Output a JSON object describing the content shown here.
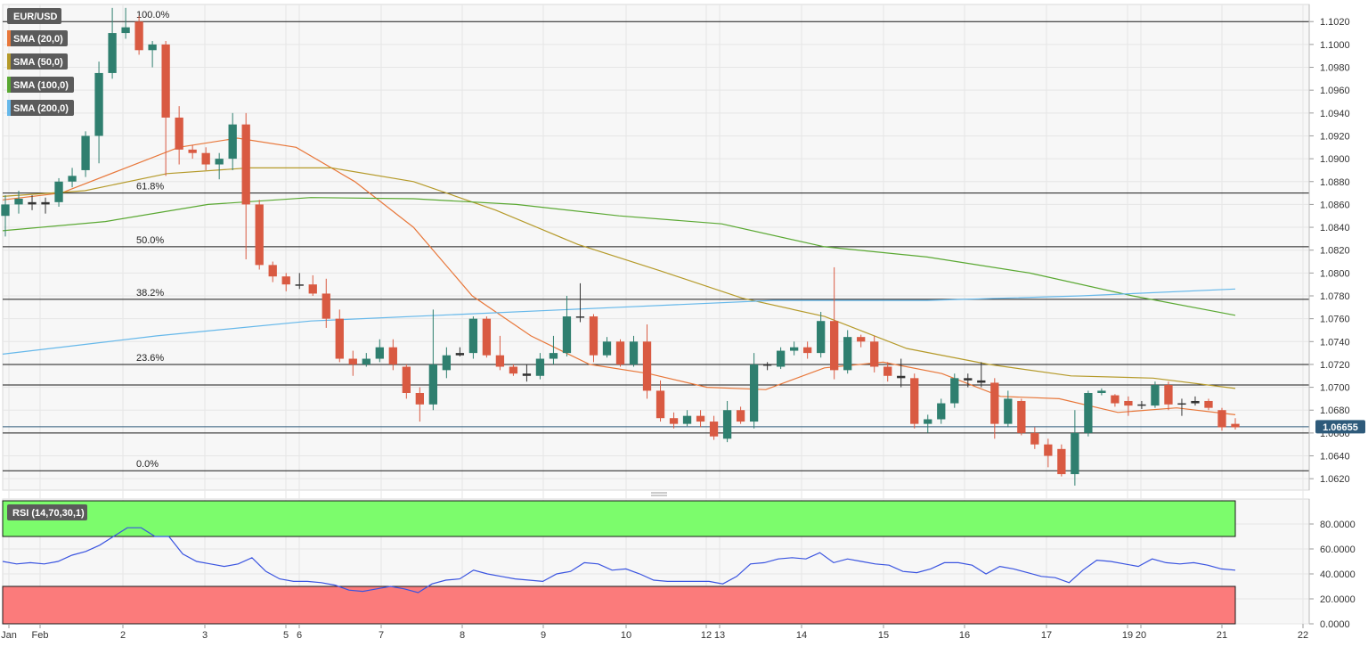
{
  "legend": {
    "symbol": "EUR/USD",
    "indicators": [
      {
        "label": "SMA (20,0)",
        "color": "#e8773a"
      },
      {
        "label": "SMA (50,0)",
        "color": "#b59a2a"
      },
      {
        "label": "SMA (100,0)",
        "color": "#5aa832"
      },
      {
        "label": "SMA (200,0)",
        "color": "#66b8ea"
      }
    ]
  },
  "price_badge": "1.06655",
  "colors": {
    "bull": "#2f7f6f",
    "bear": "#d95a42",
    "grid": "#e6e6e6",
    "plot_bg": "#f7f7f7",
    "rsi_line": "#3a54e0",
    "rsi_overbought": "#7cfc6c",
    "rsi_oversold": "#fb7b7b"
  },
  "rsi_panel": {
    "label": "RSI (14,70,30,1)"
  },
  "chart_data": [
    {
      "type": "candlestick",
      "title": "EUR/USD",
      "ylim": [
        1.061,
        1.1035
      ],
      "y_ticks": [
        "1.0620",
        "1.0640",
        "1.0660",
        "1.0680",
        "1.0700",
        "1.0720",
        "1.0740",
        "1.0760",
        "1.0780",
        "1.0800",
        "1.0820",
        "1.0840",
        "1.0860",
        "1.0880",
        "1.0900",
        "1.0920",
        "1.0940",
        "1.0960",
        "1.0980",
        "1.1000",
        "1.1020"
      ],
      "x_ticks": [
        "Jan",
        "Feb",
        "2",
        "3",
        "5",
        "6",
        "7",
        "8",
        "9",
        "10",
        "12",
        "13",
        "14",
        "15",
        "16",
        "17",
        "19",
        "20",
        "21",
        "22"
      ],
      "last_price": 1.06655,
      "horizontal_levels": [
        1.102,
        1.087,
        1.0823,
        1.0777,
        1.072,
        1.0702,
        1.066,
        1.0627
      ],
      "fibonacci": [
        {
          "label": "100.0%",
          "value": 1.102
        },
        {
          "label": "61.8%",
          "value": 1.087
        },
        {
          "label": "50.0%",
          "value": 1.0823
        },
        {
          "label": "38.2%",
          "value": 1.0777
        },
        {
          "label": "23.6%",
          "value": 1.072
        },
        {
          "label": "0.0%",
          "value": 1.0627
        }
      ],
      "candles": [
        [
          1.085,
          1.086,
          1.0832,
          1.0868
        ],
        [
          1.086,
          1.0865,
          1.0852,
          1.0872
        ],
        [
          1.0862,
          1.086,
          1.0855,
          1.0868
        ],
        [
          1.086,
          1.0862,
          1.0852,
          1.0866
        ],
        [
          1.0862,
          1.088,
          1.0858,
          1.0883
        ],
        [
          1.088,
          1.0885,
          1.0875,
          1.0892
        ],
        [
          1.089,
          1.092,
          1.0884,
          1.0924
        ],
        [
          1.092,
          1.0975,
          1.0896,
          1.0985
        ],
        [
          1.0975,
          1.101,
          1.097,
          1.1032
        ],
        [
          1.101,
          1.1015,
          1.1005,
          1.1032
        ],
        [
          1.102,
          1.0995,
          1.0991,
          1.1025
        ],
        [
          1.0995,
          1.1,
          1.098,
          1.1003
        ],
        [
          1.1,
          1.0936,
          1.0885,
          1.1003
        ],
        [
          1.0936,
          1.0908,
          1.0895,
          1.0946
        ],
        [
          1.0908,
          1.0905,
          1.09,
          1.0912
        ],
        [
          1.0905,
          1.0895,
          1.089,
          1.091
        ],
        [
          1.0895,
          1.09,
          1.0882,
          1.0905
        ],
        [
          1.09,
          1.093,
          1.089,
          1.094
        ],
        [
          1.093,
          1.086,
          1.0812,
          1.094
        ],
        [
          1.086,
          1.0807,
          1.0803,
          1.0864
        ],
        [
          1.0807,
          1.0797,
          1.0792,
          1.081
        ],
        [
          1.0797,
          1.079,
          1.0784,
          1.08
        ],
        [
          1.079,
          1.079,
          1.0786,
          1.08
        ],
        [
          1.079,
          1.0782,
          1.078,
          1.0798
        ],
        [
          1.0782,
          1.076,
          1.0752,
          1.0795
        ],
        [
          1.076,
          1.0725,
          1.0722,
          1.0768
        ],
        [
          1.0725,
          1.072,
          1.071,
          1.0732
        ],
        [
          1.072,
          1.0725,
          1.0718,
          1.073
        ],
        [
          1.0725,
          1.0735,
          1.0722,
          1.0742
        ],
        [
          1.0735,
          1.072,
          1.0715,
          1.0742
        ],
        [
          1.0718,
          1.0695,
          1.069,
          1.072
        ],
        [
          1.0695,
          1.0685,
          1.067,
          1.07
        ],
        [
          1.0685,
          1.072,
          1.068,
          1.0768
        ],
        [
          1.0715,
          1.0728,
          1.0708,
          1.0735
        ],
        [
          1.0728,
          1.073,
          1.0727,
          1.0735
        ],
        [
          1.073,
          1.076,
          1.0725,
          1.0762
        ],
        [
          1.076,
          1.0728,
          1.0726,
          1.0762
        ],
        [
          1.0728,
          1.0718,
          1.0715,
          1.0745
        ],
        [
          1.0718,
          1.0712,
          1.071,
          1.072
        ],
        [
          1.0712,
          1.071,
          1.0705,
          1.072
        ],
        [
          1.071,
          1.0725,
          1.0707,
          1.073
        ],
        [
          1.0725,
          1.073,
          1.072,
          1.0745
        ],
        [
          1.073,
          1.0762,
          1.0727,
          1.078
        ],
        [
          1.0762,
          1.0762,
          1.0757,
          1.0791
        ],
        [
          1.0762,
          1.0728,
          1.0722,
          1.0764
        ],
        [
          1.0728,
          1.074,
          1.0726,
          1.0744
        ],
        [
          1.074,
          1.072,
          1.0718,
          1.0742
        ],
        [
          1.072,
          1.074,
          1.0718,
          1.0745
        ],
        [
          1.074,
          1.0697,
          1.069,
          1.0755
        ],
        [
          1.0697,
          1.0673,
          1.067,
          1.0706
        ],
        [
          1.0673,
          1.0668,
          1.0664,
          1.0678
        ],
        [
          1.0668,
          1.0675,
          1.0666,
          1.068
        ],
        [
          1.0675,
          1.067,
          1.0665,
          1.068
        ],
        [
          1.067,
          1.0657,
          1.0654,
          1.0675
        ],
        [
          1.0655,
          1.068,
          1.0652,
          1.0688
        ],
        [
          1.068,
          1.067,
          1.0668,
          1.0683
        ],
        [
          1.067,
          1.072,
          1.0664,
          1.073
        ],
        [
          1.072,
          1.072,
          1.0715,
          1.0722
        ],
        [
          1.0718,
          1.0732,
          1.0716,
          1.0735
        ],
        [
          1.0732,
          1.0735,
          1.0728,
          1.074
        ],
        [
          1.0735,
          1.073,
          1.0725,
          1.074
        ],
        [
          1.073,
          1.0758,
          1.0726,
          1.0766
        ],
        [
          1.0758,
          1.0715,
          1.0707,
          1.0805
        ],
        [
          1.0715,
          1.0744,
          1.0712,
          1.075
        ],
        [
          1.0744,
          1.074,
          1.0735,
          1.0746
        ],
        [
          1.074,
          1.0718,
          1.0713,
          1.0745
        ],
        [
          1.0718,
          1.071,
          1.0705,
          1.0722
        ],
        [
          1.071,
          1.0708,
          1.07,
          1.0725
        ],
        [
          1.0708,
          1.0668,
          1.0664,
          1.0712
        ],
        [
          1.0668,
          1.0672,
          1.066,
          1.0676
        ],
        [
          1.0672,
          1.0686,
          1.0668,
          1.069
        ],
        [
          1.0686,
          1.0708,
          1.0682,
          1.0712
        ],
        [
          1.0708,
          1.0706,
          1.07,
          1.0712
        ],
        [
          1.0706,
          1.0704,
          1.07,
          1.0722
        ],
        [
          1.0704,
          1.0668,
          1.0655,
          1.0708
        ],
        [
          1.0668,
          1.069,
          1.0665,
          1.0697
        ],
        [
          1.0688,
          1.066,
          1.0658,
          1.069
        ],
        [
          1.066,
          1.065,
          1.0646,
          1.0665
        ],
        [
          1.065,
          1.064,
          1.063,
          1.0655
        ],
        [
          1.0646,
          1.0624,
          1.0622,
          1.065
        ],
        [
          1.0624,
          1.066,
          1.0614,
          1.068
        ],
        [
          1.066,
          1.0695,
          1.0657,
          1.0697
        ],
        [
          1.0695,
          1.0697,
          1.0693,
          1.0699
        ],
        [
          1.0693,
          1.0686,
          1.0683,
          1.0694
        ],
        [
          1.0688,
          1.0684,
          1.0675,
          1.0692
        ],
        [
          1.0684,
          1.0685,
          1.0681,
          1.0688
        ],
        [
          1.0684,
          1.0702,
          1.0682,
          1.0705
        ],
        [
          1.0702,
          1.0685,
          1.068,
          1.0705
        ],
        [
          1.0685,
          1.0686,
          1.0675,
          1.069
        ],
        [
          1.0686,
          1.0688,
          1.0684,
          1.0692
        ],
        [
          1.0688,
          1.0682,
          1.068,
          1.069
        ],
        [
          1.068,
          1.0665,
          1.0662,
          1.0682
        ],
        [
          1.0668,
          1.0665,
          1.0663,
          1.0673
        ]
      ],
      "sma": [
        {
          "name": "SMA (20,0)",
          "values": [
            1.0864,
            1.087,
            1.089,
            1.091,
            1.0918,
            1.091,
            1.088,
            1.084,
            1.078,
            1.0745,
            1.072,
            1.0712,
            1.07,
            1.0698,
            1.0717,
            1.0722,
            1.0712,
            1.0692,
            1.069,
            1.0678,
            1.0682,
            1.0676
          ]
        },
        {
          "name": "SMA (50,0)",
          "values": [
            1.0867,
            1.0872,
            1.0887,
            1.0892,
            1.0892,
            1.088,
            1.0855,
            1.0825,
            1.0802,
            1.0778,
            1.0762,
            1.0734,
            1.072,
            1.071,
            1.0708,
            1.0699
          ]
        },
        {
          "name": "SMA (100,0)",
          "values": [
            1.0837,
            1.0845,
            1.086,
            1.0866,
            1.0865,
            1.086,
            1.085,
            1.0843,
            1.0823,
            1.0814,
            1.08,
            1.078,
            1.0763
          ]
        },
        {
          "name": "SMA (200,0)",
          "values": [
            1.0729,
            1.0745,
            1.0758,
            1.0764,
            1.077,
            1.0776,
            1.0776,
            1.078,
            1.0786
          ]
        }
      ]
    },
    {
      "type": "line",
      "title": "RSI (14,70,30,1)",
      "ylim": [
        0,
        100
      ],
      "y_ticks": [
        "0.0000",
        "20.0000",
        "40.0000",
        "60.0000",
        "80.0000"
      ],
      "overbought": 70,
      "oversold": 30,
      "values": [
        50,
        48,
        49,
        48,
        50,
        55,
        58,
        63,
        70,
        77,
        77,
        70,
        70,
        56,
        50,
        48,
        46,
        48,
        53,
        42,
        36,
        34,
        34,
        33,
        31,
        27,
        26,
        28,
        30,
        28,
        25,
        32,
        35,
        36,
        43,
        40,
        38,
        36,
        35,
        34,
        40,
        42,
        49,
        48,
        43,
        44,
        40,
        35,
        34,
        34,
        34,
        34,
        32,
        38,
        48,
        49,
        52,
        53,
        52,
        57,
        49,
        52,
        50,
        48,
        47,
        42,
        41,
        44,
        49,
        49,
        47,
        40,
        46,
        44,
        41,
        38,
        37,
        33,
        43,
        51,
        50,
        48,
        46,
        52,
        49,
        48,
        49,
        47,
        44,
        43
      ]
    }
  ]
}
